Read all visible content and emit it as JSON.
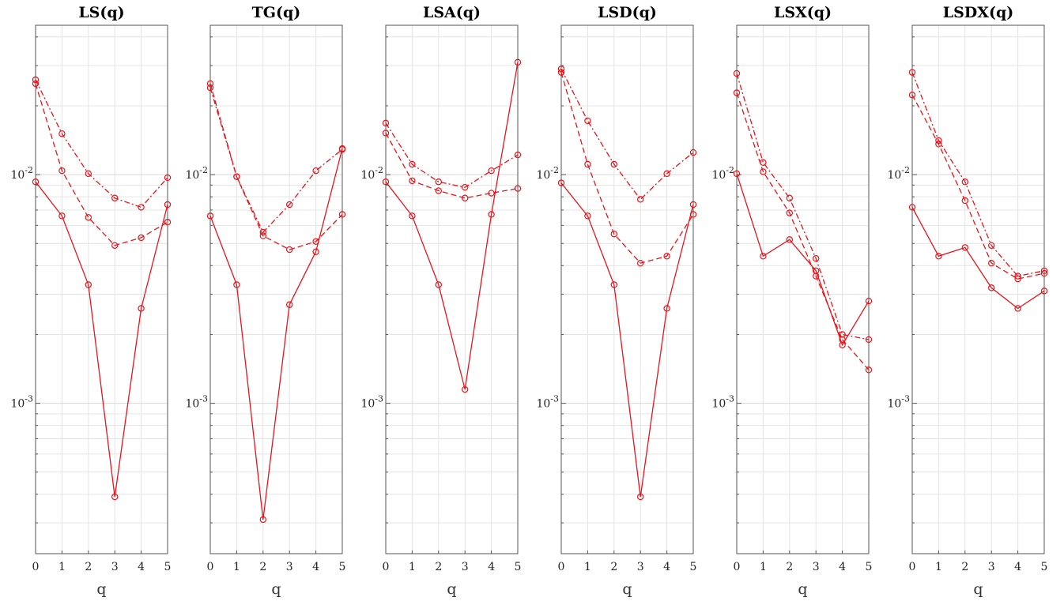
{
  "chart_data": [
    {
      "type": "line",
      "title": "LS(q)",
      "xlabel": "q",
      "x": [
        0,
        1,
        2,
        3,
        4,
        5
      ],
      "yscale": "log",
      "ylim": [
        0.00022,
        0.045
      ],
      "yticks": [
        {
          "value": 0.001,
          "base": "10",
          "exp": "-3"
        },
        {
          "value": 0.01,
          "base": "10",
          "exp": "-2"
        }
      ],
      "grid": true,
      "series": [
        {
          "style": "solid",
          "values": [
            0.0093,
            0.0066,
            0.0033,
            0.00039,
            0.0026,
            0.0074
          ]
        },
        {
          "style": "dashed",
          "values": [
            0.025,
            0.0104,
            0.0065,
            0.0049,
            0.0053,
            0.0062
          ]
        },
        {
          "style": "dashdot",
          "values": [
            0.026,
            0.0151,
            0.0101,
            0.0079,
            0.0072,
            0.0097
          ]
        }
      ]
    },
    {
      "type": "line",
      "title": "TG(q)",
      "xlabel": "q",
      "x": [
        0,
        1,
        2,
        3,
        4,
        5
      ],
      "yscale": "log",
      "ylim": [
        0.00022,
        0.045
      ],
      "yticks": [
        {
          "value": 0.001,
          "base": "10",
          "exp": "-3"
        },
        {
          "value": 0.01,
          "base": "10",
          "exp": "-2"
        }
      ],
      "grid": true,
      "series": [
        {
          "style": "solid",
          "values": [
            0.0066,
            0.0033,
            0.00031,
            0.0027,
            0.0046,
            0.013
          ]
        },
        {
          "style": "dashed",
          "values": [
            0.025,
            0.0098,
            0.0054,
            0.0047,
            0.0051,
            0.0067
          ]
        },
        {
          "style": "dashdot",
          "values": [
            0.024,
            0.0098,
            0.0056,
            0.0074,
            0.0104,
            0.0129
          ]
        }
      ]
    },
    {
      "type": "line",
      "title": "LSA(q)",
      "xlabel": "q",
      "x": [
        0,
        1,
        2,
        3,
        4,
        5
      ],
      "yscale": "log",
      "ylim": [
        0.00022,
        0.045
      ],
      "yticks": [
        {
          "value": 0.001,
          "base": "10",
          "exp": "-3"
        },
        {
          "value": 0.01,
          "base": "10",
          "exp": "-2"
        }
      ],
      "grid": true,
      "series": [
        {
          "style": "solid",
          "values": [
            0.0093,
            0.0066,
            0.0033,
            0.00115,
            0.0067,
            0.031
          ]
        },
        {
          "style": "dashed",
          "values": [
            0.0152,
            0.0094,
            0.0085,
            0.0079,
            0.0083,
            0.0087
          ]
        },
        {
          "style": "dashdot",
          "values": [
            0.0168,
            0.0111,
            0.0093,
            0.0088,
            0.0104,
            0.0122
          ]
        }
      ]
    },
    {
      "type": "line",
      "title": "LSD(q)",
      "xlabel": "q",
      "x": [
        0,
        1,
        2,
        3,
        4,
        5
      ],
      "yscale": "log",
      "ylim": [
        0.00022,
        0.045
      ],
      "yticks": [
        {
          "value": 0.001,
          "base": "10",
          "exp": "-3"
        },
        {
          "value": 0.01,
          "base": "10",
          "exp": "-2"
        }
      ],
      "grid": true,
      "series": [
        {
          "style": "solid",
          "values": [
            0.0092,
            0.0066,
            0.0033,
            0.00039,
            0.0026,
            0.0074
          ]
        },
        {
          "style": "dashed",
          "values": [
            0.028,
            0.0111,
            0.0055,
            0.0041,
            0.0044,
            0.0067
          ]
        },
        {
          "style": "dashdot",
          "values": [
            0.029,
            0.0172,
            0.0111,
            0.0078,
            0.0101,
            0.0125
          ]
        }
      ]
    },
    {
      "type": "line",
      "title": "LSX(q)",
      "xlabel": "q",
      "x": [
        0,
        1,
        2,
        3,
        4,
        5
      ],
      "yscale": "log",
      "ylim": [
        0.00022,
        0.045
      ],
      "yticks": [
        {
          "value": 0.001,
          "base": "10",
          "exp": "-3"
        },
        {
          "value": 0.01,
          "base": "10",
          "exp": "-2"
        }
      ],
      "grid": true,
      "series": [
        {
          "style": "solid",
          "values": [
            0.0101,
            0.0044,
            0.0052,
            0.0038,
            0.0018,
            0.0028
          ]
        },
        {
          "style": "dashed",
          "values": [
            0.0228,
            0.0103,
            0.0068,
            0.0036,
            0.0019,
            0.0014
          ]
        },
        {
          "style": "dashdot",
          "values": [
            0.0277,
            0.0113,
            0.0079,
            0.0043,
            0.002,
            0.0019
          ]
        }
      ]
    },
    {
      "type": "line",
      "title": "LSDX(q)",
      "xlabel": "q",
      "x": [
        0,
        1,
        2,
        3,
        4,
        5
      ],
      "yscale": "log",
      "ylim": [
        0.00022,
        0.045
      ],
      "yticks": [
        {
          "value": 0.001,
          "base": "10",
          "exp": "-3"
        },
        {
          "value": 0.01,
          "base": "10",
          "exp": "-2"
        }
      ],
      "grid": true,
      "series": [
        {
          "style": "solid",
          "values": [
            0.0072,
            0.0044,
            0.0048,
            0.0032,
            0.0026,
            0.0031
          ]
        },
        {
          "style": "dashed",
          "values": [
            0.0223,
            0.0136,
            0.0077,
            0.0041,
            0.0035,
            0.0037
          ]
        },
        {
          "style": "dashdot",
          "values": [
            0.028,
            0.0141,
            0.0093,
            0.0049,
            0.0036,
            0.0038
          ]
        }
      ]
    }
  ],
  "colors": {
    "line": "#e8141b",
    "axis": "#555555",
    "grid": "#e4e4e4"
  }
}
